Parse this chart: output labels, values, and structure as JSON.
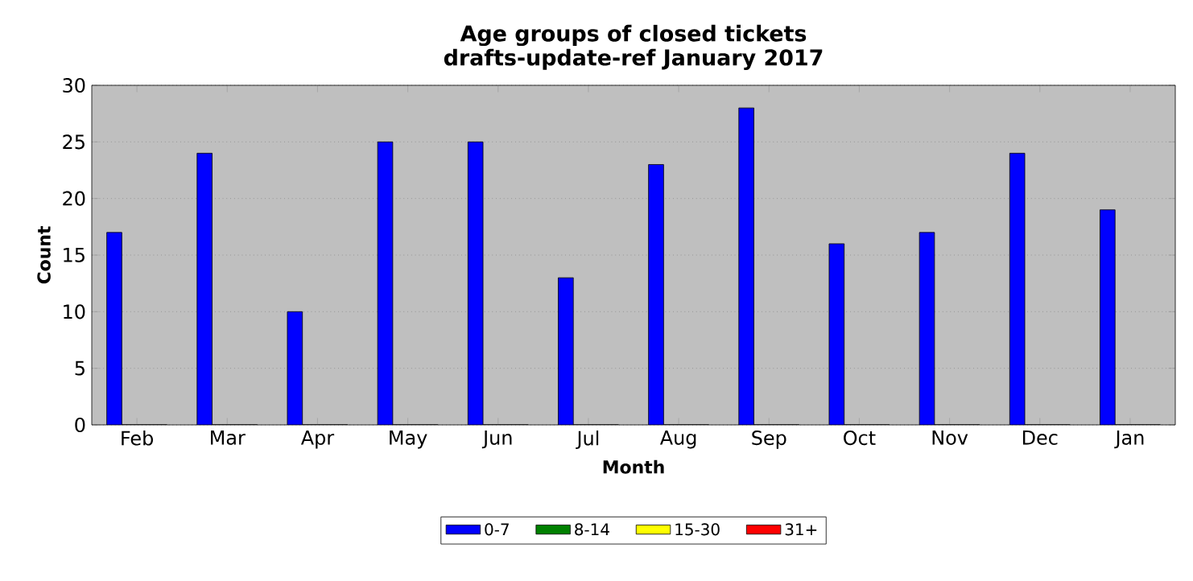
{
  "chart_data": {
    "type": "bar",
    "title": "Age groups of closed tickets\ndrafts-update-ref January 2017",
    "xlabel": "Month",
    "ylabel": "Count",
    "categories": [
      "Feb",
      "Mar",
      "Apr",
      "May",
      "Jun",
      "Jul",
      "Aug",
      "Sep",
      "Oct",
      "Nov",
      "Dec",
      "Jan"
    ],
    "series": [
      {
        "name": "0-7",
        "color": "#0000ff",
        "values": [
          17,
          24,
          10,
          25,
          25,
          13,
          23,
          28,
          16,
          17,
          24,
          19
        ]
      },
      {
        "name": "8-14",
        "color": "#008000",
        "values": [
          0,
          0,
          0,
          0,
          0,
          0,
          0,
          0,
          0,
          0,
          0,
          0
        ]
      },
      {
        "name": "15-30",
        "color": "#ffff00",
        "values": [
          0,
          0,
          0,
          0,
          0,
          0,
          0,
          0,
          0,
          0,
          0,
          0
        ]
      },
      {
        "name": "31+",
        "color": "#ff0000",
        "values": [
          0,
          0,
          0,
          0,
          0,
          0,
          0,
          0,
          0,
          0,
          0,
          0
        ]
      }
    ],
    "ylim": [
      0,
      30
    ],
    "yticks": [
      0,
      5,
      10,
      15,
      20,
      25,
      30
    ],
    "grid": "y",
    "legend": "bottom"
  }
}
